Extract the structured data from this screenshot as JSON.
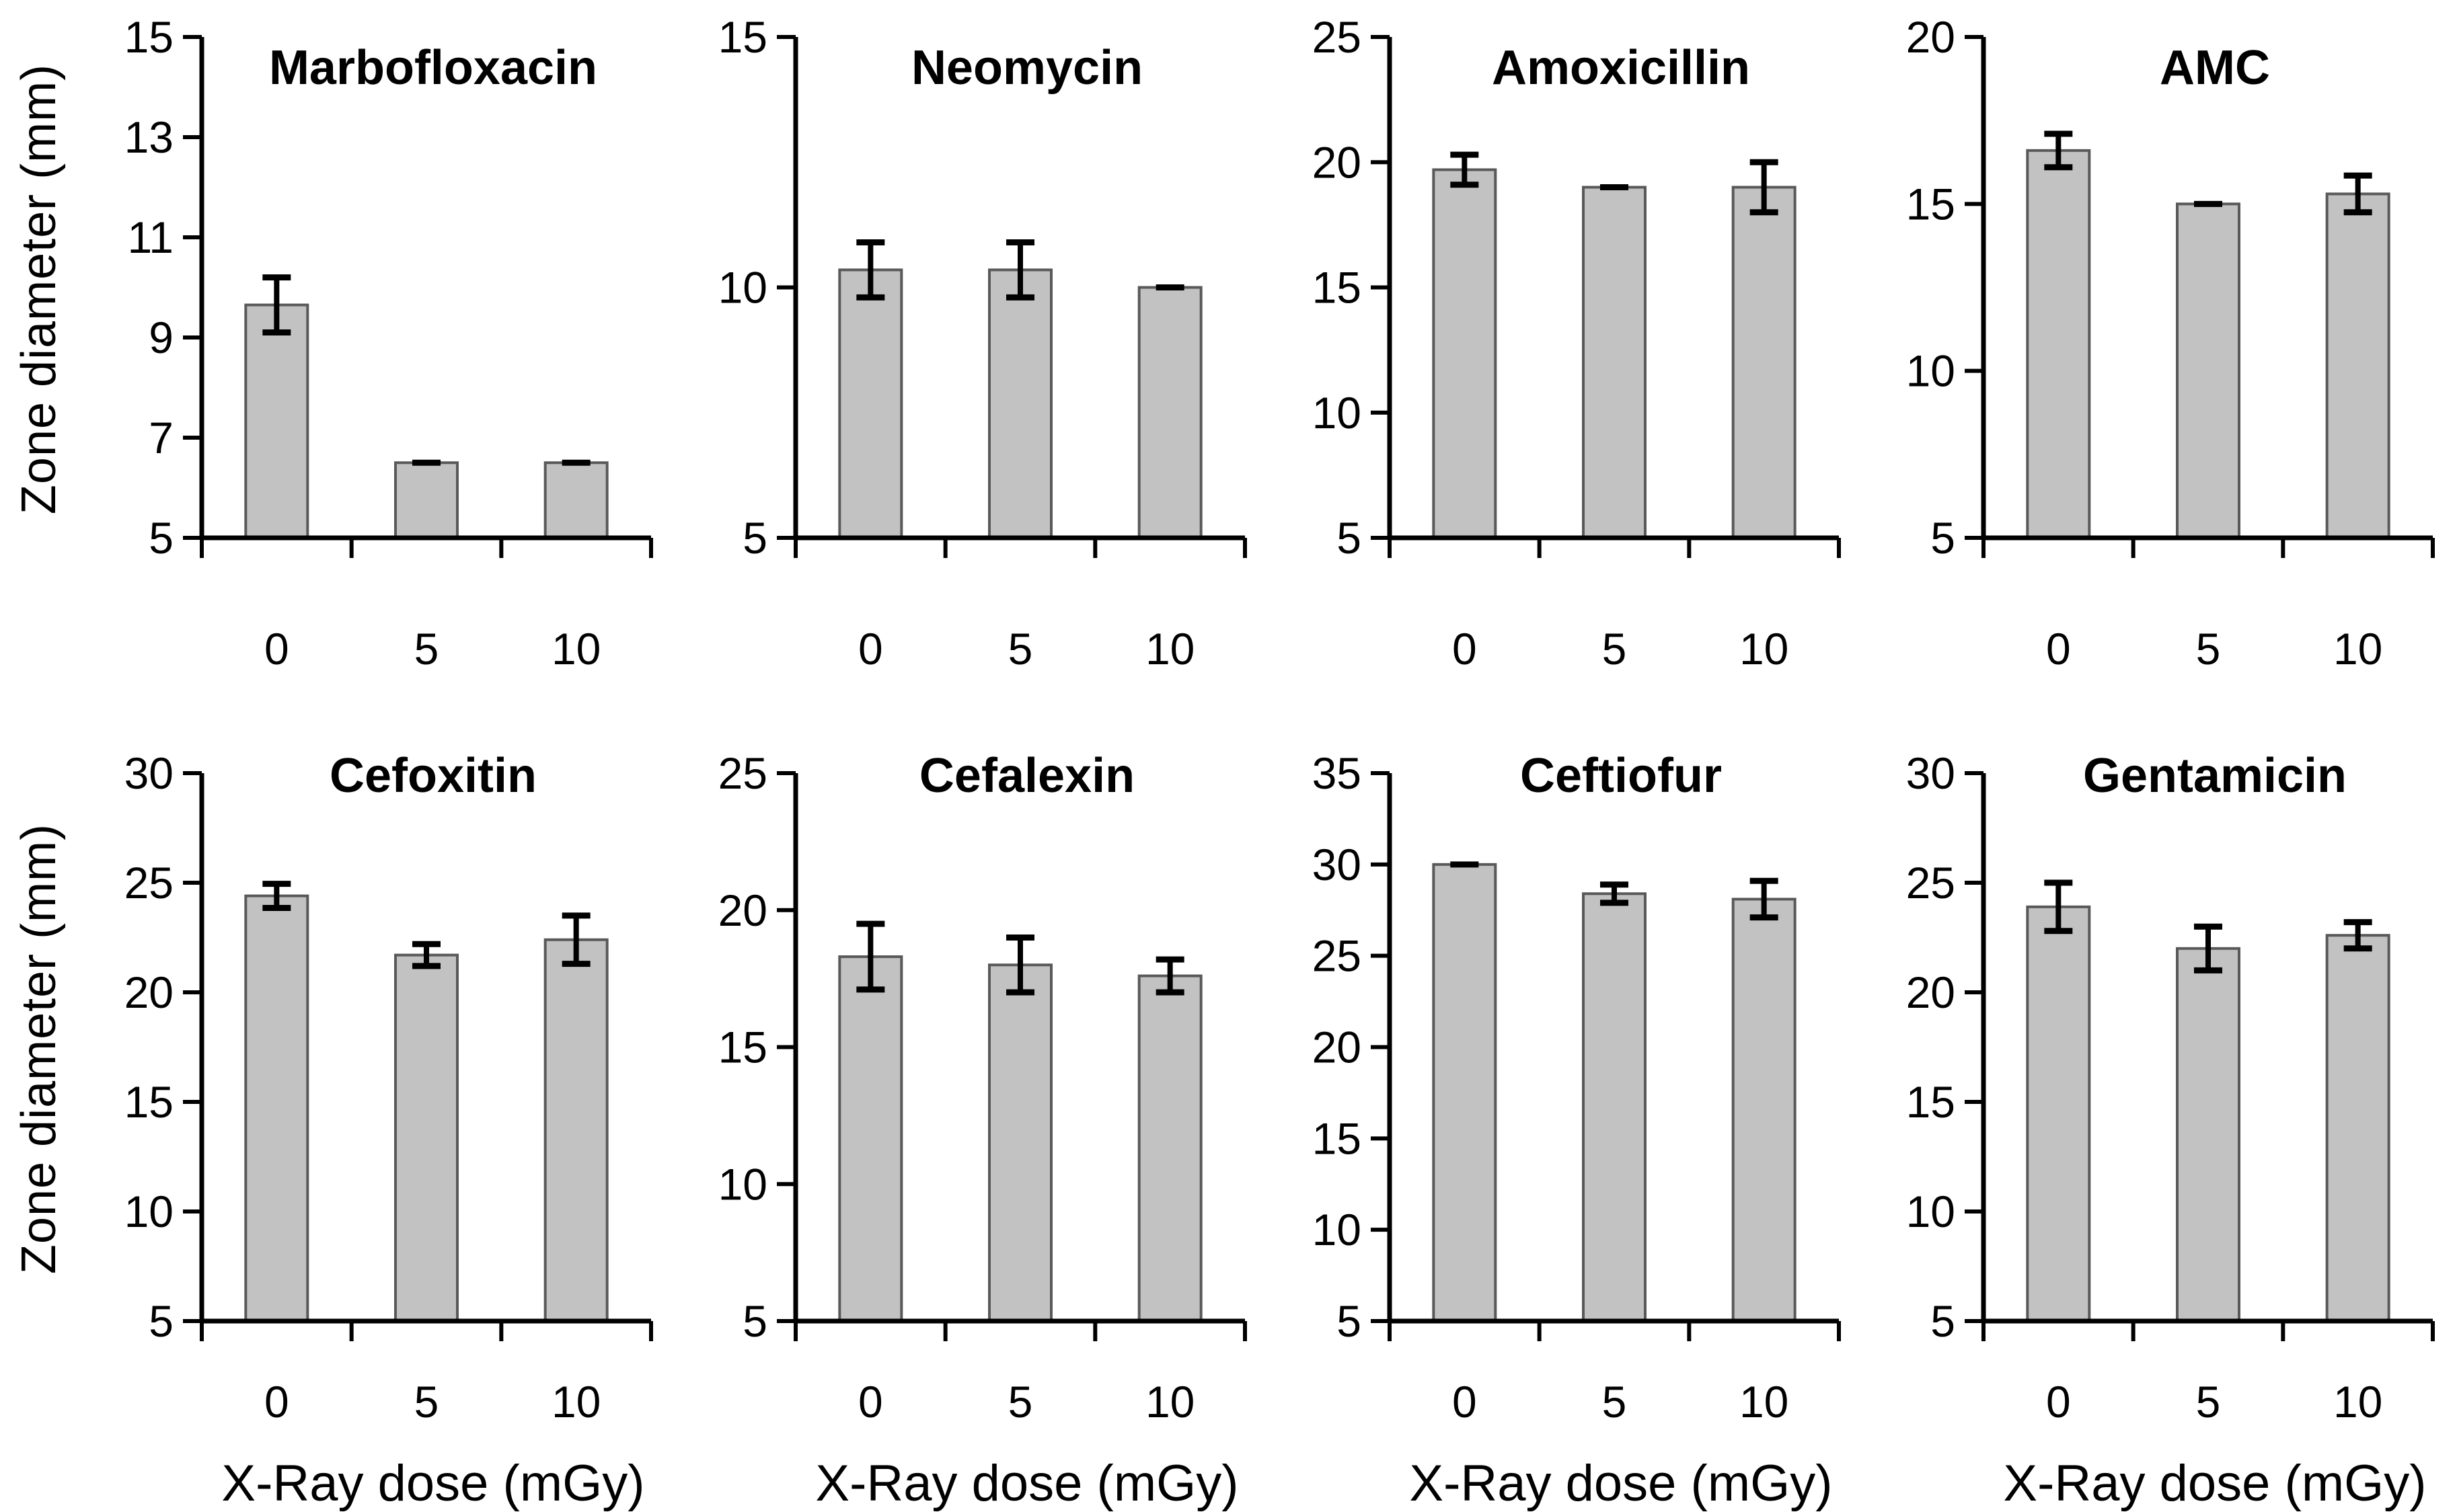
{
  "figure": {
    "y_axis_label": "Zone diameter (mm)",
    "x_axis_label": "X-Ray dose (mGy)"
  },
  "style": {
    "bar_fill": "#c2c2c2",
    "bar_stroke": "#595959",
    "axis_color": "#000000",
    "error_color": "#000000",
    "background": "#ffffff"
  },
  "chart_data": [
    {
      "type": "bar",
      "title": "Marbofloxacin",
      "row": 0,
      "categories": [
        "0",
        "5",
        "10"
      ],
      "values": [
        9.65,
        6.5,
        6.5
      ],
      "errors": [
        0.55,
        0,
        0
      ],
      "ylim": [
        5,
        15
      ],
      "yticks": [
        5,
        7,
        9,
        11,
        13,
        15
      ],
      "xlabel": "",
      "ylabel": "Zone diameter (mm)",
      "grid": false,
      "legend": "none"
    },
    {
      "type": "bar",
      "title": "Neomycin",
      "row": 0,
      "categories": [
        "0",
        "5",
        "10"
      ],
      "values": [
        10.35,
        10.35,
        10.0
      ],
      "errors": [
        0.55,
        0.55,
        0
      ],
      "ylim": [
        5,
        15
      ],
      "yticks": [
        5,
        10,
        15
      ],
      "xlabel": "",
      "ylabel": "Zone diameter (mm)",
      "grid": false,
      "legend": "none"
    },
    {
      "type": "bar",
      "title": "Amoxicillin",
      "row": 0,
      "categories": [
        "0",
        "5",
        "10"
      ],
      "values": [
        19.7,
        19.0,
        19.0
      ],
      "errors": [
        0.6,
        0,
        1.0
      ],
      "ylim": [
        5,
        25
      ],
      "yticks": [
        5,
        10,
        15,
        20,
        25
      ],
      "xlabel": "",
      "ylabel": "Zone diameter (mm)",
      "grid": false,
      "legend": "none"
    },
    {
      "type": "bar",
      "title": "AMC",
      "row": 0,
      "categories": [
        "0",
        "5",
        "10"
      ],
      "values": [
        16.6,
        15.0,
        15.3
      ],
      "errors": [
        0.5,
        0,
        0.55
      ],
      "ylim": [
        5,
        20
      ],
      "yticks": [
        5,
        10,
        15,
        20
      ],
      "xlabel": "",
      "ylabel": "Zone diameter (mm)",
      "grid": false,
      "legend": "none"
    },
    {
      "type": "bar",
      "title": "Cefoxitin",
      "row": 1,
      "categories": [
        "0",
        "5",
        "10"
      ],
      "values": [
        24.4,
        21.7,
        22.4
      ],
      "errors": [
        0.55,
        0.5,
        1.1
      ],
      "ylim": [
        5,
        30
      ],
      "yticks": [
        5,
        10,
        15,
        20,
        25,
        30
      ],
      "xlabel": "X-Ray dose (mGy)",
      "ylabel": "Zone diameter (mm)",
      "grid": false,
      "legend": "none"
    },
    {
      "type": "bar",
      "title": "Cefalexin",
      "row": 1,
      "categories": [
        "0",
        "5",
        "10"
      ],
      "values": [
        18.3,
        18.0,
        17.6
      ],
      "errors": [
        1.2,
        1.0,
        0.6
      ],
      "ylim": [
        5,
        25
      ],
      "yticks": [
        5,
        10,
        15,
        20,
        25
      ],
      "xlabel": "X-Ray dose (mGy)",
      "ylabel": "Zone diameter (mm)",
      "grid": false,
      "legend": "none"
    },
    {
      "type": "bar",
      "title": "Ceftiofur",
      "row": 1,
      "categories": [
        "0",
        "5",
        "10"
      ],
      "values": [
        30.0,
        28.4,
        28.1
      ],
      "errors": [
        0,
        0.5,
        1.0
      ],
      "ylim": [
        5,
        35
      ],
      "yticks": [
        5,
        10,
        15,
        20,
        25,
        30,
        35
      ],
      "xlabel": "X-Ray dose (mGy)",
      "ylabel": "Zone diameter (mm)",
      "grid": false,
      "legend": "none"
    },
    {
      "type": "bar",
      "title": "Gentamicin",
      "row": 1,
      "categories": [
        "0",
        "5",
        "10"
      ],
      "values": [
        23.9,
        22.0,
        22.6
      ],
      "errors": [
        1.1,
        1.0,
        0.6
      ],
      "ylim": [
        5,
        30
      ],
      "yticks": [
        5,
        10,
        15,
        20,
        25,
        30
      ],
      "xlabel": "X-Ray dose (mGy)",
      "ylabel": "Zone diameter (mm)",
      "grid": false,
      "legend": "none"
    }
  ]
}
